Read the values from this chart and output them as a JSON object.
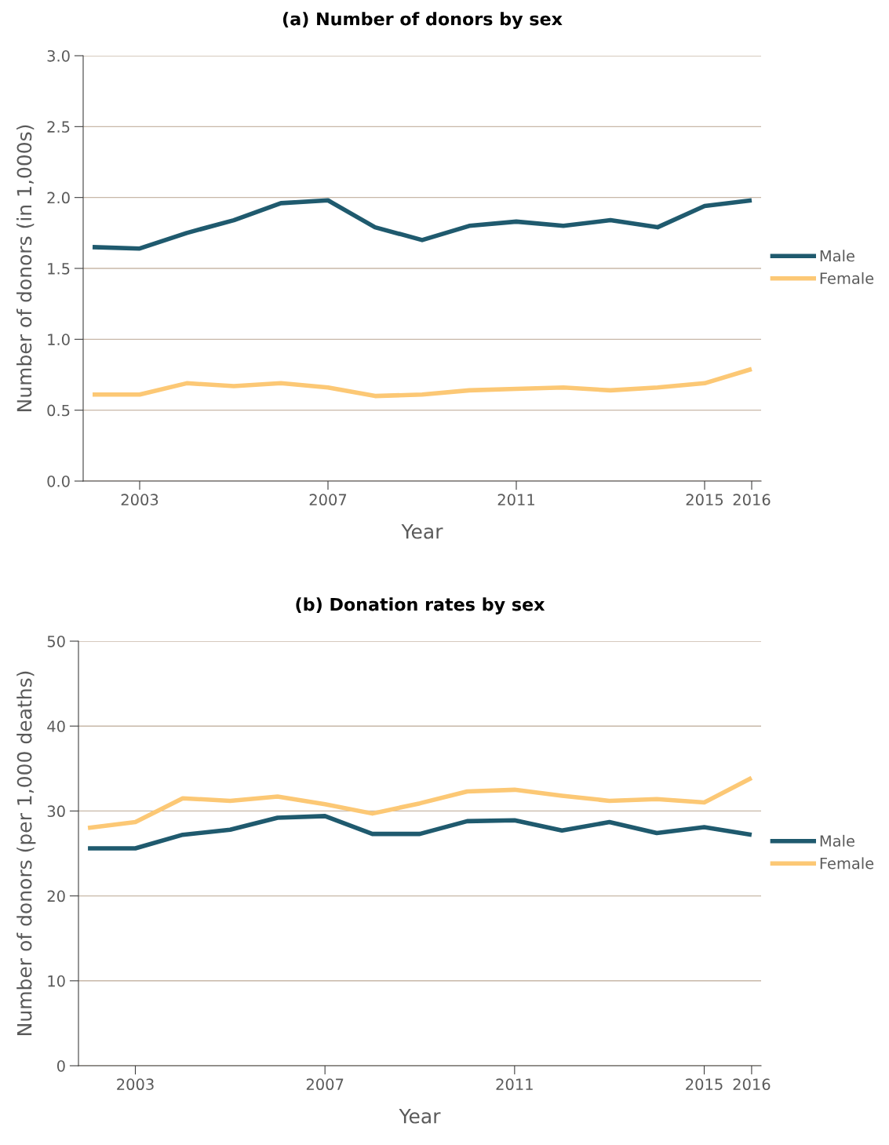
{
  "chart_data": [
    {
      "type": "line",
      "title": "(a) Number of donors by sex",
      "xlabel": "Year",
      "ylabel": "Number of donors (in 1,000s)",
      "x": [
        2002,
        2003,
        2004,
        2005,
        2006,
        2007,
        2008,
        2009,
        2010,
        2011,
        2012,
        2013,
        2014,
        2015,
        2016
      ],
      "series": [
        {
          "name": "Male",
          "color": "#1f5a6e",
          "values": [
            1.65,
            1.64,
            1.75,
            1.84,
            1.96,
            1.98,
            1.79,
            1.7,
            1.8,
            1.83,
            1.8,
            1.84,
            1.79,
            1.94,
            1.98
          ]
        },
        {
          "name": "Female",
          "color": "#fcc875",
          "values": [
            0.61,
            0.61,
            0.69,
            0.67,
            0.69,
            0.66,
            0.6,
            0.61,
            0.64,
            0.65,
            0.66,
            0.64,
            0.66,
            0.69,
            0.79
          ]
        }
      ],
      "xlim": [
        2001.8,
        2016.2
      ],
      "xticks": [
        2003,
        2007,
        2011,
        2015,
        2016
      ],
      "ylim": [
        0,
        3
      ],
      "yticks": [
        {
          "value": 0,
          "label": "0.0"
        },
        {
          "value": 0.5,
          "label": "0.5"
        },
        {
          "value": 1,
          "label": "1.0"
        },
        {
          "value": 1.5,
          "label": "1.5"
        },
        {
          "value": 2,
          "label": "2.0"
        },
        {
          "value": 2.5,
          "label": "2.5"
        },
        {
          "value": 3,
          "label": "3.0"
        }
      ],
      "grid": "y",
      "legend": "right",
      "marker": "none",
      "line_style": "solid"
    },
    {
      "type": "line",
      "title": "(b) Donation rates by sex",
      "xlabel": "Year",
      "ylabel": "Number of donors (per 1,000 deaths)",
      "x": [
        2002,
        2003,
        2004,
        2005,
        2006,
        2007,
        2008,
        2009,
        2010,
        2011,
        2012,
        2013,
        2014,
        2015,
        2016
      ],
      "series": [
        {
          "name": "Male",
          "color": "#1f5a6e",
          "values": [
            25.6,
            25.6,
            27.2,
            27.8,
            29.2,
            29.4,
            27.3,
            27.3,
            28.8,
            28.9,
            27.7,
            28.7,
            27.4,
            28.1,
            27.2
          ]
        },
        {
          "name": "Female",
          "color": "#fcc875",
          "values": [
            28.0,
            28.7,
            31.5,
            31.2,
            31.7,
            30.8,
            29.7,
            30.9,
            32.3,
            32.5,
            31.8,
            31.2,
            31.4,
            31.0,
            33.9
          ]
        }
      ],
      "xlim": [
        2001.8,
        2016.2
      ],
      "xticks": [
        2003,
        2007,
        2011,
        2015,
        2016
      ],
      "ylim": [
        0,
        50
      ],
      "yticks": [
        0,
        10,
        20,
        30,
        40,
        50
      ],
      "grid": "y",
      "legend": "right",
      "marker": "none",
      "line_style": "solid"
    }
  ]
}
